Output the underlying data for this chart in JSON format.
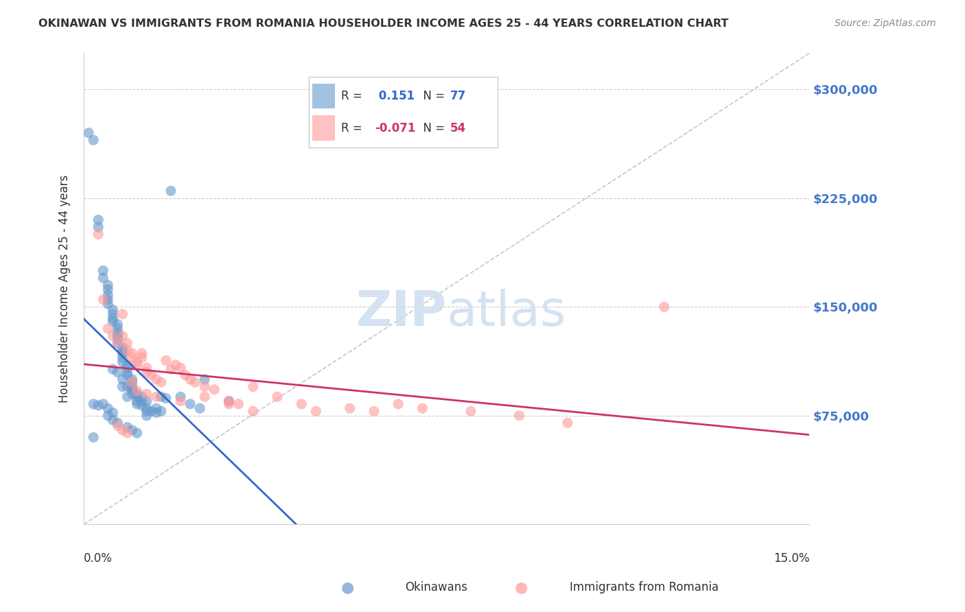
{
  "title": "OKINAWAN VS IMMIGRANTS FROM ROMANIA HOUSEHOLDER INCOME AGES 25 - 44 YEARS CORRELATION CHART",
  "source": "Source: ZipAtlas.com",
  "xlabel": "",
  "ylabel": "Householder Income Ages 25 - 44 years",
  "xlim": [
    0.0,
    0.15
  ],
  "ylim": [
    0,
    325000
  ],
  "yticks": [
    0,
    75000,
    150000,
    225000,
    300000
  ],
  "ytick_labels": [
    "",
    "$75,000",
    "$150,000",
    "$225,000",
    "$300,000"
  ],
  "xticks": [
    0.0,
    0.025,
    0.05,
    0.075,
    0.1,
    0.125,
    0.15
  ],
  "xtick_labels": [
    "0.0%",
    "",
    "",
    "",
    "",
    "",
    "15.0%"
  ],
  "grid_color": "#cccccc",
  "background_color": "#ffffff",
  "okinawan": {
    "color": "#6699cc",
    "R": 0.151,
    "N": 77,
    "label": "Okinawans",
    "trend_color": "#3366cc"
  },
  "romania": {
    "color": "#ff9999",
    "R": -0.071,
    "N": 54,
    "label": "Immigrants from Romania",
    "trend_color": "#cc3366"
  },
  "legend_box_color": "#ffffff",
  "legend_border_color": "#cccccc",
  "title_color": "#333333",
  "axis_label_color": "#333333",
  "ytick_color": "#4477cc",
  "xtick_color": "#333333",
  "watermark_text": "ZIPatlas",
  "watermark_color": "#d0dff0",
  "ref_line_color": "#aabbcc",
  "okinawan_x": [
    0.002,
    0.003,
    0.003,
    0.004,
    0.004,
    0.005,
    0.005,
    0.005,
    0.005,
    0.005,
    0.006,
    0.006,
    0.006,
    0.006,
    0.007,
    0.007,
    0.007,
    0.007,
    0.007,
    0.007,
    0.008,
    0.008,
    0.008,
    0.008,
    0.008,
    0.009,
    0.009,
    0.009,
    0.009,
    0.01,
    0.01,
    0.01,
    0.01,
    0.01,
    0.011,
    0.011,
    0.011,
    0.012,
    0.012,
    0.013,
    0.013,
    0.013,
    0.014,
    0.015,
    0.016,
    0.017,
    0.018,
    0.02,
    0.022,
    0.024,
    0.025,
    0.03,
    0.001,
    0.002,
    0.003,
    0.008,
    0.009,
    0.01,
    0.011,
    0.012,
    0.013,
    0.004,
    0.005,
    0.006,
    0.006,
    0.007,
    0.008,
    0.009,
    0.015,
    0.016,
    0.005,
    0.006,
    0.007,
    0.009,
    0.01,
    0.011,
    0.002
  ],
  "okinawan_y": [
    265000,
    210000,
    205000,
    175000,
    170000,
    165000,
    162000,
    158000,
    155000,
    152000,
    148000,
    145000,
    142000,
    140000,
    138000,
    135000,
    132000,
    130000,
    128000,
    125000,
    122000,
    120000,
    118000,
    115000,
    112000,
    110000,
    108000,
    105000,
    103000,
    100000,
    98000,
    95000,
    93000,
    90000,
    88000,
    85000,
    83000,
    85000,
    82000,
    80000,
    78000,
    75000,
    78000,
    77000,
    88000,
    87000,
    230000,
    88000,
    83000,
    80000,
    100000,
    85000,
    270000,
    83000,
    82000,
    100000,
    95000,
    93000,
    90000,
    88000,
    85000,
    83000,
    80000,
    77000,
    107000,
    105000,
    95000,
    88000,
    80000,
    78000,
    75000,
    72000,
    70000,
    67000,
    65000,
    63000,
    60000
  ],
  "romania_x": [
    0.003,
    0.004,
    0.005,
    0.006,
    0.007,
    0.008,
    0.008,
    0.009,
    0.009,
    0.01,
    0.01,
    0.011,
    0.011,
    0.012,
    0.012,
    0.013,
    0.013,
    0.014,
    0.015,
    0.016,
    0.017,
    0.018,
    0.019,
    0.02,
    0.021,
    0.022,
    0.023,
    0.025,
    0.027,
    0.03,
    0.032,
    0.035,
    0.04,
    0.045,
    0.048,
    0.055,
    0.06,
    0.065,
    0.07,
    0.08,
    0.09,
    0.1,
    0.007,
    0.008,
    0.009,
    0.01,
    0.011,
    0.013,
    0.015,
    0.02,
    0.025,
    0.03,
    0.035,
    0.12
  ],
  "romania_y": [
    200000,
    155000,
    135000,
    130000,
    125000,
    145000,
    130000,
    125000,
    120000,
    118000,
    115000,
    112000,
    110000,
    118000,
    115000,
    108000,
    105000,
    103000,
    100000,
    98000,
    113000,
    107000,
    110000,
    108000,
    103000,
    100000,
    98000,
    95000,
    93000,
    85000,
    83000,
    95000,
    88000,
    83000,
    78000,
    80000,
    78000,
    83000,
    80000,
    78000,
    75000,
    70000,
    68000,
    65000,
    63000,
    98000,
    92000,
    90000,
    88000,
    85000,
    88000,
    83000,
    78000,
    150000
  ]
}
